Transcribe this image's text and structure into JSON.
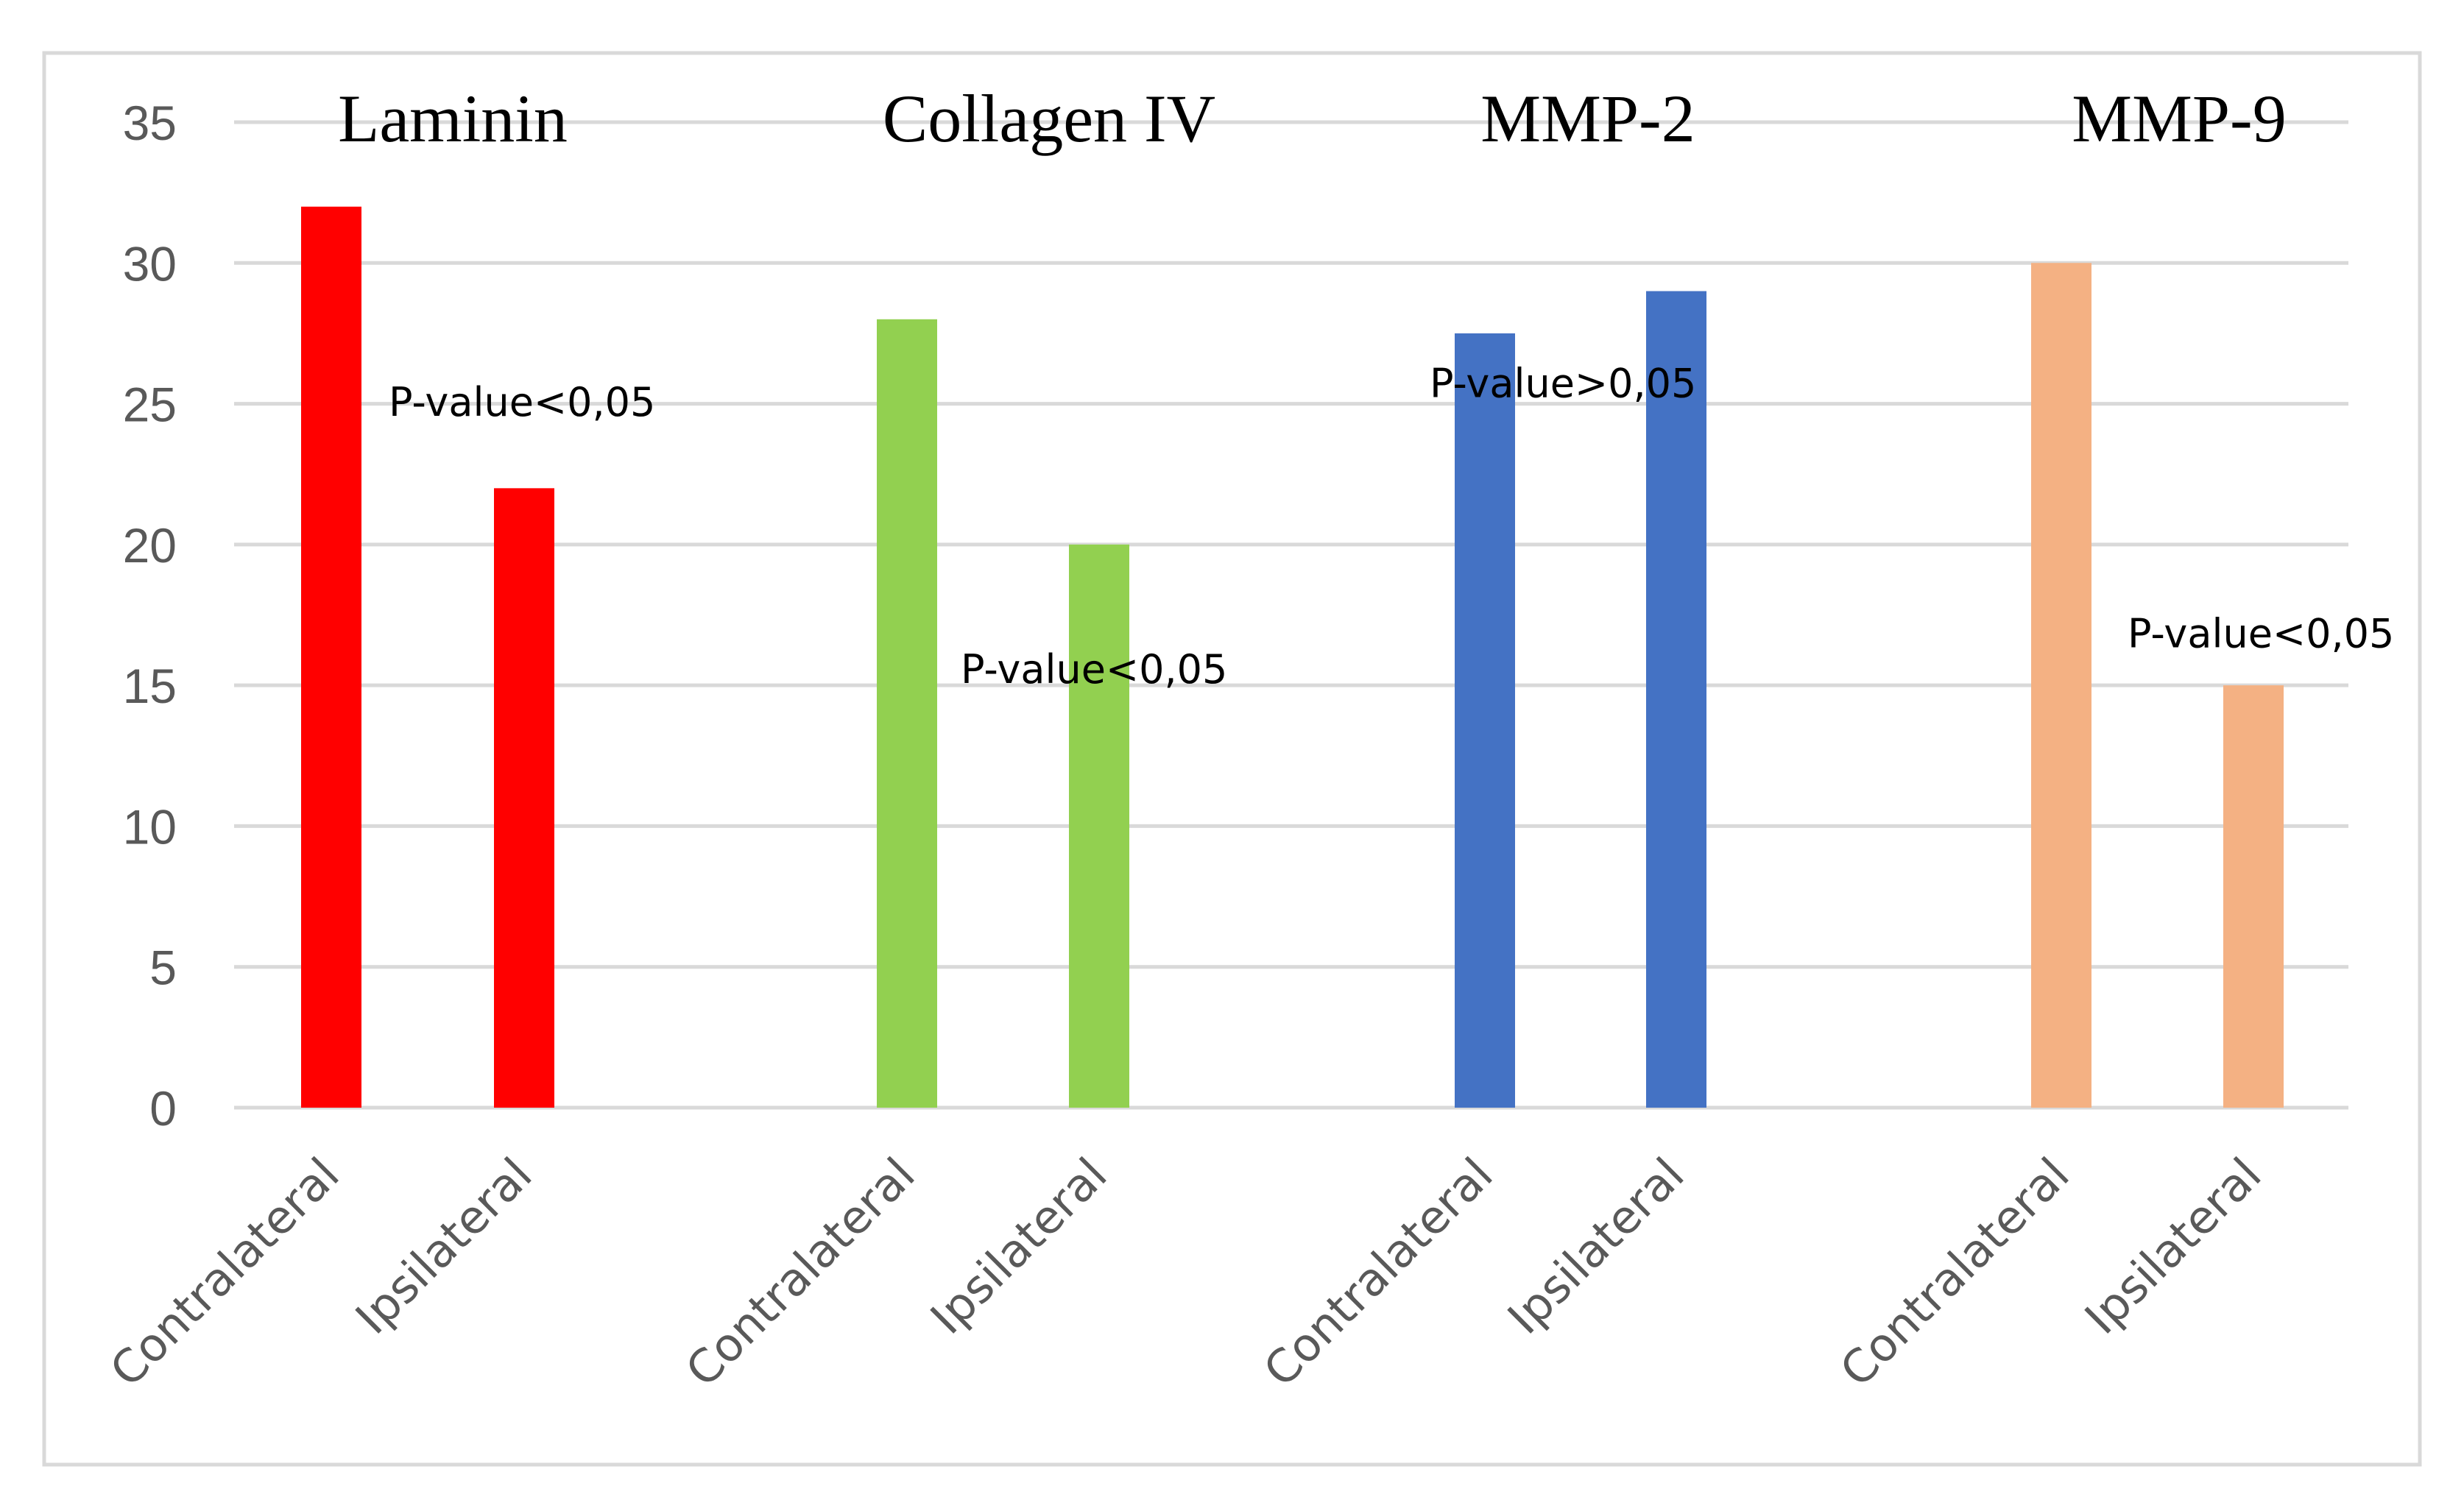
{
  "chart_data": {
    "type": "bar",
    "ylim": [
      0,
      35
    ],
    "yticks": [
      0,
      5,
      10,
      15,
      20,
      25,
      30,
      35
    ],
    "grid": true,
    "legend": "none",
    "xlabel": "",
    "ylabel": "",
    "groups": [
      {
        "title": "Laminin",
        "color": "#FF0000",
        "categories": [
          "Contralateral",
          "Ipsilateral"
        ],
        "values": [
          32,
          22
        ],
        "annotation": "P-value<0,05"
      },
      {
        "title": "Collagen IV",
        "color": "#92D050",
        "categories": [
          "Contralateral",
          "Ipsilateral"
        ],
        "values": [
          28,
          20
        ],
        "annotation": "P-value<0,05"
      },
      {
        "title": "MMP-2",
        "color": "#4472C4",
        "categories": [
          "Contralateral",
          "Ipsilateral"
        ],
        "values": [
          27.5,
          29
        ],
        "annotation": "P-value>0,05"
      },
      {
        "title": "MMP-9",
        "color": "#F4B183",
        "categories": [
          "Contralateral",
          "Ipsilateral"
        ],
        "values": [
          30,
          15
        ],
        "annotation": "P-value<0,05"
      }
    ]
  },
  "colors": {
    "grid": "#D9D9D9",
    "frame": "#D9D9D9",
    "axis_text": "#595959"
  }
}
